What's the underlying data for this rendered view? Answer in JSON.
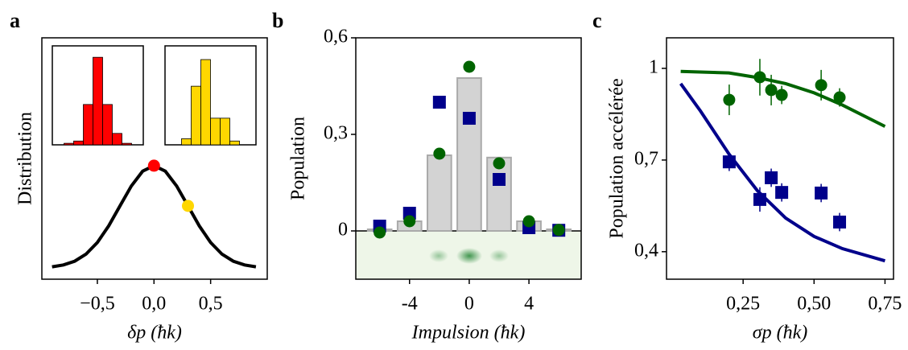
{
  "chart_data": [
    {
      "type": "line",
      "panel_label": "a",
      "xlabel": "δp (ħk)",
      "ylabel": "Distribution",
      "x": [
        -0.9,
        -0.8,
        -0.7,
        -0.6,
        -0.5,
        -0.4,
        -0.3,
        -0.2,
        -0.1,
        0,
        0.1,
        0.2,
        0.3,
        0.4,
        0.5,
        0.6,
        0.7,
        0.8,
        0.9
      ],
      "values": [
        0.011,
        0.029,
        0.066,
        0.135,
        0.249,
        0.411,
        0.607,
        0.801,
        0.946,
        1,
        0.946,
        0.801,
        0.607,
        0.411,
        0.249,
        0.135,
        0.066,
        0.029,
        0.011
      ],
      "color": "#000000",
      "xlim": [
        -0.99,
        1.0
      ],
      "ylim": [
        -0.11,
        2.25
      ],
      "xticks": [
        {
          "value": -0.5,
          "label": "−0,5"
        },
        {
          "value": 0,
          "label": "0,0"
        },
        {
          "value": 0.5,
          "label": "0,5"
        }
      ],
      "markers": {
        "x": [
          0,
          0.3
        ],
        "values": [
          1,
          0.607
        ],
        "colors": [
          "#ff0000",
          "#ffd700"
        ]
      },
      "insets": [
        {
          "color": "#ff0000",
          "values": [
            2,
            5,
            53,
            115,
            53,
            15,
            2
          ]
        },
        {
          "color": "#ffd700",
          "values": [
            8,
            77,
            112,
            35,
            35,
            5
          ]
        }
      ]
    },
    {
      "type": "bar",
      "panel_label": "b",
      "xlabel": "Impulsion (ħk)",
      "ylabel": "Population",
      "x": [
        -6,
        -4,
        -2,
        0,
        2,
        4,
        6
      ],
      "values": [
        0.005,
        0.03,
        0.235,
        0.475,
        0.228,
        0.03,
        0.005
      ],
      "color": "#d3d3d3",
      "series": [
        {
          "color": "#00008b",
          "marker": "square",
          "values": [
            0.015,
            0.055,
            0.4,
            0.35,
            0.16,
            0.01,
            0.002
          ]
        },
        {
          "color": "#006400",
          "marker": "circle",
          "values": [
            -0.005,
            0.03,
            0.24,
            0.51,
            0.21,
            0.03,
            0.003
          ]
        }
      ],
      "xlim": [
        -7.6,
        7.5
      ],
      "ylim": [
        -0.15,
        0.6
      ],
      "xticks": [
        -4,
        0,
        4
      ],
      "yticks": [
        0,
        {
          "value": 0.3,
          "label": "0,3"
        },
        {
          "value": 0.6,
          "label": "0,6"
        }
      ]
    },
    {
      "type": "scatter",
      "panel_label": "c",
      "xlabel": "σp (ħk)",
      "ylabel": "Population accélérée",
      "series": [
        {
          "color": "#006400",
          "marker": "circle",
          "x": [
            0.201,
            0.309,
            0.349,
            0.386,
            0.525,
            0.59
          ],
          "values": [
            0.897,
            0.971,
            0.929,
            0.913,
            0.945,
            0.905
          ],
          "errors": [
            0.05,
            0.06,
            0.05,
            0.03,
            0.05,
            0.03
          ]
        },
        {
          "color": "#00008b",
          "marker": "square",
          "x": [
            0.201,
            0.309,
            0.349,
            0.386,
            0.525,
            0.59
          ],
          "values": [
            0.694,
            0.571,
            0.642,
            0.594,
            0.592,
            0.497
          ],
          "errors": [
            0.03,
            0.04,
            0.03,
            0.03,
            0.03,
            0.03
          ]
        }
      ],
      "fits": [
        {
          "color": "#006400",
          "x": [
            0.03,
            0.2,
            0.3,
            0.4,
            0.5,
            0.6,
            0.75
          ],
          "values": [
            0.99,
            0.985,
            0.97,
            0.95,
            0.92,
            0.88,
            0.81
          ]
        },
        {
          "color": "#00008b",
          "x": [
            0.03,
            0.1,
            0.2,
            0.3,
            0.4,
            0.5,
            0.6,
            0.75
          ],
          "values": [
            0.95,
            0.86,
            0.72,
            0.6,
            0.51,
            0.45,
            0.41,
            0.37
          ]
        }
      ],
      "xlim": [
        -0.02,
        0.78
      ],
      "ylim": [
        0.31,
        1.1
      ],
      "xticks": [
        {
          "value": 0.25,
          "label": "0,25"
        },
        {
          "value": 0.5,
          "label": "0,50"
        },
        {
          "value": 0.75,
          "label": "0,75"
        }
      ],
      "yticks": [
        {
          "value": 0.4,
          "label": "0,4"
        },
        {
          "value": 0.7,
          "label": "0,7"
        },
        1
      ]
    }
  ]
}
